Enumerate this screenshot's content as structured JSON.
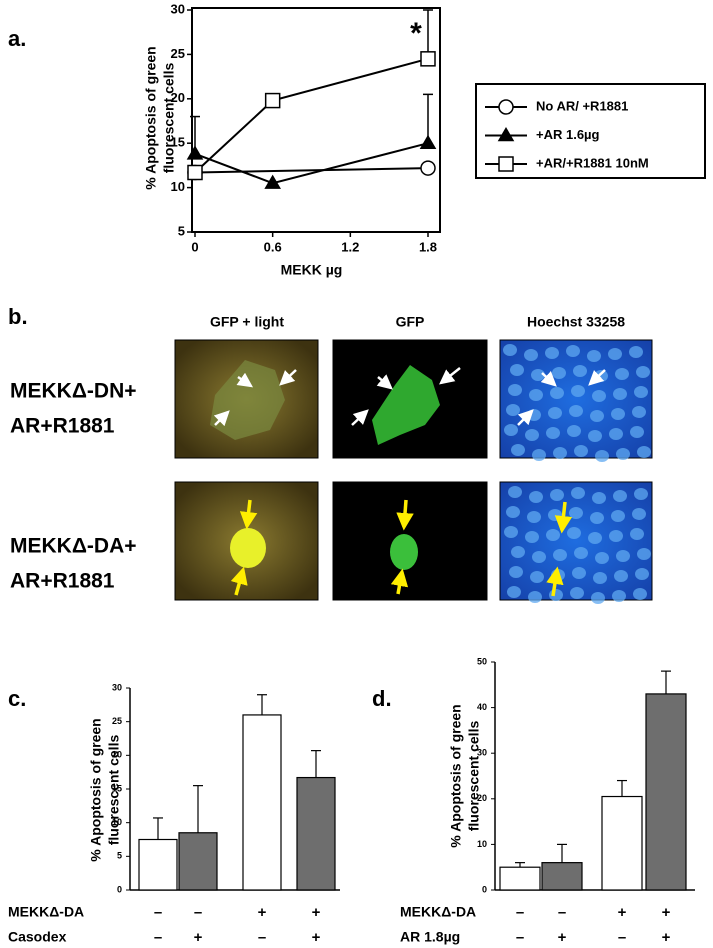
{
  "chart_data": [
    {
      "type": "line",
      "panel": "a.",
      "ylabel": [
        "% Apoptosis of green",
        "fluorescent cells"
      ],
      "xlabel": "MEKK µg",
      "xlim": [
        0,
        1.8
      ],
      "xticks": [
        0,
        0.6,
        1.2,
        1.8
      ],
      "ylim": [
        5,
        30
      ],
      "yticks": [
        5,
        10,
        15,
        20,
        25,
        30
      ],
      "annotation": "*",
      "legend": "right",
      "series": [
        {
          "name": "No AR/ +R1881",
          "color": "#000000",
          "marker": "circle",
          "x": [
            0,
            1.8
          ],
          "values": [
            11.7,
            12.2
          ],
          "errors": [
            null,
            null
          ]
        },
        {
          "name": "+AR 1.6µg",
          "color": "#000000",
          "marker": "triangle",
          "x": [
            0,
            0.6,
            1.8
          ],
          "values": [
            13.8,
            10.5,
            15
          ],
          "errors": [
            4.2,
            null,
            5.5
          ]
        },
        {
          "name": "+AR/+R1881 10nM",
          "color": "#000000",
          "marker": "square",
          "x": [
            0,
            0.6,
            1.8
          ],
          "values": [
            11.7,
            19.8,
            24.5
          ],
          "errors": [
            null,
            null,
            5.5
          ]
        }
      ]
    },
    {
      "type": "bar",
      "panel": "c.",
      "ylabel": [
        "% Apoptosis of green",
        "fluorescent cells"
      ],
      "ylim": [
        0,
        30
      ],
      "yticks": [
        0,
        5,
        10,
        15,
        20,
        25,
        30
      ],
      "values": [
        7.5,
        8.5,
        26,
        16.7
      ],
      "errors": [
        3.2,
        7,
        3,
        4
      ],
      "colors": [
        "#ffffff",
        "#6e6e6e",
        "#ffffff",
        "#6e6e6e"
      ],
      "factors": [
        {
          "name": "MEKKΔ-DA",
          "values": [
            "–",
            "–",
            "+",
            "+"
          ]
        },
        {
          "name": "Casodex",
          "values": [
            "–",
            "+",
            "–",
            "+"
          ]
        }
      ]
    },
    {
      "type": "bar",
      "panel": "d.",
      "ylabel": [
        "% Apoptosis of green",
        "fluorescent cells"
      ],
      "ylim": [
        0,
        50
      ],
      "yticks": [
        0,
        10,
        20,
        30,
        40,
        50
      ],
      "values": [
        5,
        6,
        20.5,
        43
      ],
      "errors": [
        1,
        4,
        3.5,
        5
      ],
      "colors": [
        "#ffffff",
        "#6e6e6e",
        "#ffffff",
        "#6e6e6e"
      ],
      "factors": [
        {
          "name": "MEKKΔ-DA",
          "values": [
            "–",
            "–",
            "+",
            "+"
          ]
        },
        {
          "name": "AR 1.8µg",
          "values": [
            "–",
            "+",
            "–",
            "+"
          ]
        }
      ]
    }
  ],
  "panel_b": {
    "label": "b.",
    "columns": [
      "GFP + light",
      "GFP",
      "Hoechst 33258"
    ],
    "rows": [
      [
        "MEKKΔ-DN+",
        "AR+R1881"
      ],
      [
        "MEKKΔ-DA+",
        "AR+R1881"
      ]
    ]
  }
}
